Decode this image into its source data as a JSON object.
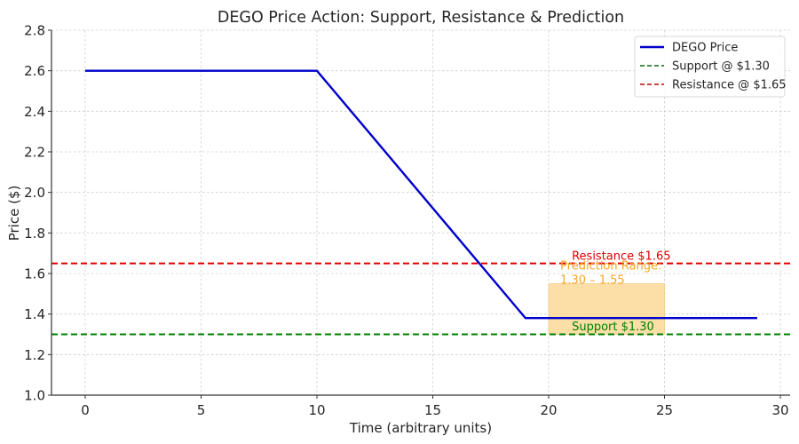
{
  "chart_data": {
    "type": "line",
    "title": "DEGO Price Action: Support, Resistance & Prediction",
    "xlabel": "Time (arbitrary units)",
    "ylabel": "Price ($)",
    "xlim": [
      -1.45,
      30.45
    ],
    "ylim": [
      1.0,
      2.8
    ],
    "xticks": [
      0,
      5,
      10,
      15,
      20,
      25,
      30
    ],
    "yticks": [
      1.0,
      1.2,
      1.4,
      1.6,
      1.8,
      2.0,
      2.2,
      2.4,
      2.6,
      2.8
    ],
    "xtick_labels": [
      "0",
      "5",
      "10",
      "15",
      "20",
      "25",
      "30"
    ],
    "ytick_labels": [
      "1.0",
      "1.2",
      "1.4",
      "1.6",
      "1.8",
      "2.0",
      "2.2",
      "2.4",
      "2.6",
      "2.8"
    ],
    "grid": true,
    "legend_position": "upper right",
    "series": [
      {
        "name": "DEGO Price",
        "style": "solid",
        "color": "#0000cc",
        "x": [
          0,
          10,
          19,
          29
        ],
        "y": [
          2.6,
          2.6,
          1.38,
          1.38
        ]
      }
    ],
    "hlines": [
      {
        "name": "Support @ $1.30",
        "y": 1.3,
        "style": "dashed",
        "color": "#008000"
      },
      {
        "name": "Resistance @ $1.65",
        "y": 1.65,
        "style": "dashed",
        "color": "#e00000"
      }
    ],
    "shaded_regions": [
      {
        "name": "Prediction Range",
        "x0": 20,
        "x1": 25,
        "y0": 1.3,
        "y1": 1.55,
        "color": "#fbd38a"
      }
    ],
    "annotations": [
      {
        "text": "Resistance $1.65",
        "x": 21,
        "y": 1.66,
        "color": "#e00000"
      },
      {
        "text": "Prediction Range:",
        "x": 20.5,
        "y": 1.61,
        "color": "#f5a623"
      },
      {
        "text": "1.30 – 1.55",
        "x": 20.5,
        "y": 1.54,
        "color": "#f5a623"
      },
      {
        "text": "Support $1.30",
        "x": 21,
        "y": 1.31,
        "color": "#008000"
      }
    ]
  },
  "legend": {
    "items": [
      {
        "label": "DEGO Price",
        "color": "#0000cc",
        "dashed": false
      },
      {
        "label": "Support @ $1.30",
        "color": "#2e7d32",
        "dashed": true
      },
      {
        "label": "Resistance @ $1.65",
        "color": "#c62828",
        "dashed": true
      }
    ]
  }
}
